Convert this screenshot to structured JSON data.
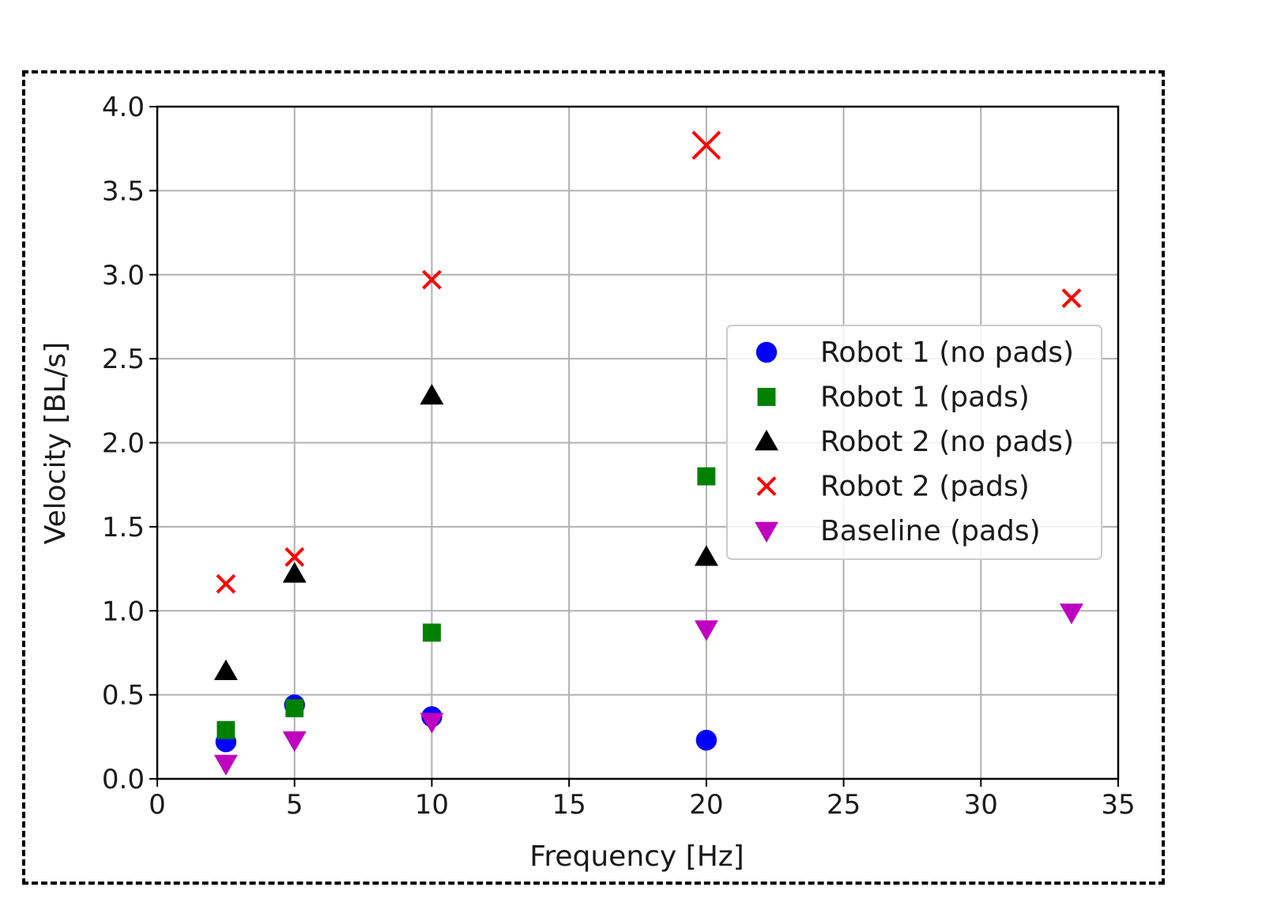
{
  "chart_data": {
    "type": "scatter",
    "title": "",
    "xlabel": "Frequency [Hz]",
    "ylabel": "Velocity [BL/s]",
    "xlim": [
      0,
      35
    ],
    "ylim": [
      0,
      4.0
    ],
    "xticks": [
      0,
      5,
      10,
      15,
      20,
      25,
      30,
      35
    ],
    "xtick_labels": [
      "0",
      "5",
      "10",
      "15",
      "20",
      "25",
      "30",
      "35"
    ],
    "yticks": [
      0,
      0.5,
      1.0,
      1.5,
      2.0,
      2.5,
      3.0,
      3.5,
      4.0
    ],
    "ytick_labels": [
      "0.0",
      "0.5",
      "1.0",
      "1.5",
      "2.0",
      "2.5",
      "3.0",
      "3.5",
      "4.0"
    ],
    "grid": true,
    "legend_position": "center-right",
    "series": [
      {
        "name": "Robot 1 (no pads)",
        "marker": "circle",
        "color": "#0000ff",
        "points": [
          [
            2.5,
            0.22
          ],
          [
            5,
            0.44
          ],
          [
            10,
            0.37
          ],
          [
            20,
            0.23
          ]
        ]
      },
      {
        "name": "Robot 1 (pads)",
        "marker": "square",
        "color": "#008000",
        "points": [
          [
            2.5,
            0.29
          ],
          [
            5,
            0.42
          ],
          [
            10,
            0.87
          ],
          [
            20,
            1.8
          ]
        ]
      },
      {
        "name": "Robot 2 (no pads)",
        "marker": "triangle-up",
        "color": "#000000",
        "points": [
          [
            2.5,
            0.64
          ],
          [
            5,
            1.22
          ],
          [
            10,
            2.28
          ],
          [
            20,
            1.32
          ]
        ]
      },
      {
        "name": "Robot 2 (pads)",
        "marker": "x",
        "color": "#ff0000",
        "points": [
          [
            2.5,
            1.16
          ],
          [
            5,
            1.32
          ],
          [
            10,
            2.97
          ],
          [
            20,
            3.77
          ],
          [
            33.3,
            2.86
          ]
        ]
      },
      {
        "name": "Baseline (pads)",
        "marker": "triangle-down",
        "color": "#bf00bf",
        "points": [
          [
            2.5,
            0.09
          ],
          [
            5,
            0.23
          ],
          [
            10,
            0.34
          ],
          [
            20,
            0.89
          ],
          [
            33.3,
            0.99
          ]
        ]
      }
    ]
  }
}
